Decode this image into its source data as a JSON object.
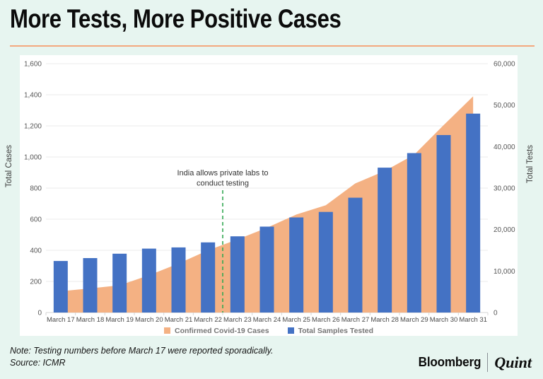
{
  "header": {
    "title": "More Tests, More Positive Cases"
  },
  "chart_data": {
    "type": "combo-bar-area",
    "categories": [
      "March 17",
      "March 18",
      "March 19",
      "March 20",
      "March 21",
      "March 22",
      "March 23",
      "March 24",
      "March 25",
      "March 26",
      "March 27",
      "March 28",
      "March 29",
      "March 30",
      "March 31"
    ],
    "series": [
      {
        "name": "Confirmed Covid-19 Cases",
        "type": "area",
        "axis": "left",
        "color": "#f4b183",
        "values": [
          137,
          155,
          175,
          240,
          315,
          400,
          470,
          545,
          630,
          690,
          830,
          910,
          1015,
          1205,
          1390
        ]
      },
      {
        "name": "Total Samples Tested",
        "type": "bar",
        "axis": "right",
        "color": "#4472c4",
        "values": [
          12426,
          13125,
          14175,
          15404,
          15701,
          16911,
          18383,
          20707,
          22928,
          24254,
          27688,
          34931,
          38442,
          42788,
          47951
        ]
      }
    ],
    "left_axis": {
      "title": "Total Cases",
      "min": 0,
      "max": 1600,
      "step": 200,
      "ticks": [
        "0",
        "200",
        "400",
        "600",
        "800",
        "1,000",
        "1,200",
        "1,400",
        "1,600"
      ]
    },
    "right_axis": {
      "title": "Total Tests",
      "min": 0,
      "max": 60000,
      "step": 10000,
      "ticks": [
        "0",
        "10,000",
        "20,000",
        "30,000",
        "40,000",
        "50,000",
        "60,000"
      ]
    },
    "annotation": {
      "lines": [
        "India allows private labs to",
        "conduct testing"
      ],
      "after_category": "March 22",
      "line_color": "#34a853"
    },
    "legend_position": "bottom",
    "grid": "on"
  },
  "colors": {
    "background": "#e7f5f0",
    "canvas": "#ffffff",
    "title_rule": "#f3a87e",
    "gridline": "#ebebeb",
    "axis_line": "#d6d6d6",
    "tick_text": "#575757",
    "date_text": "#4a4a4a",
    "annotation_text": "#333333"
  },
  "footer": {
    "note": "Note: Testing numbers before March 17 were reported sporadically.",
    "source": "Source: ICMR",
    "brand_primary": "Bloomberg",
    "brand_secondary": "Quint"
  }
}
